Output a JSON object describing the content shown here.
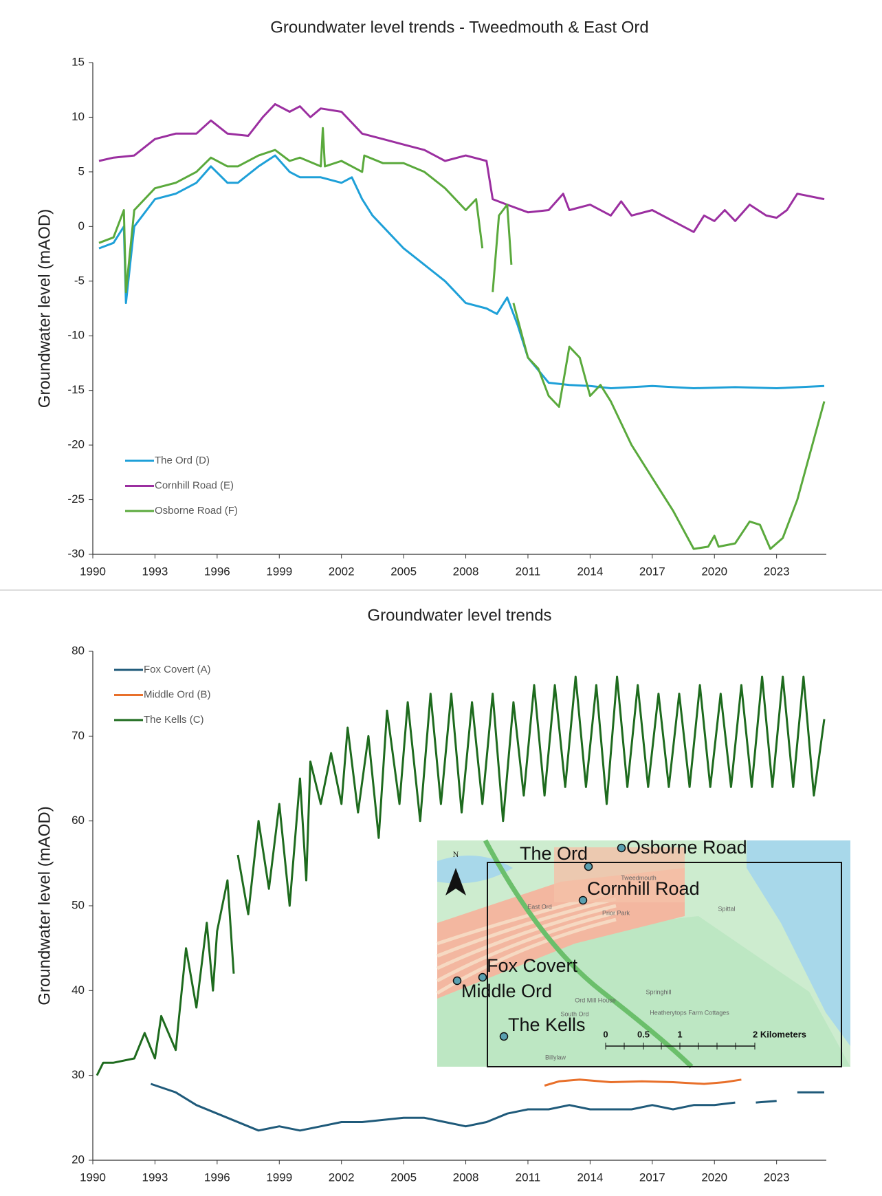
{
  "chart_data": [
    {
      "type": "line",
      "title": "Groundwater level trends - Tweedmouth & East Ord",
      "y_label": "Groundwater level (mAOD)",
      "xlim": [
        1990,
        2025.4
      ],
      "xticks": [
        1990,
        1993,
        1996,
        1999,
        2002,
        2005,
        2008,
        2011,
        2014,
        2017,
        2020,
        2023
      ],
      "ylim": [
        -30,
        15
      ],
      "yticks": [
        -30,
        -25,
        -20,
        -15,
        -10,
        -5,
        0,
        5,
        10,
        15
      ],
      "legend": "lower left",
      "series": [
        {
          "name": "The Ord (D)",
          "color": "#1ea0d8",
          "x": [
            1990.3,
            1991,
            1991.5,
            1991.6,
            1992,
            1993,
            1994,
            1995,
            1995.7,
            1996.5,
            1997,
            1998,
            1998.8,
            1999.5,
            2000,
            2001,
            2002,
            2002.5,
            2003,
            2003.5,
            2004,
            2005,
            2006,
            2007,
            2007.5,
            2008,
            2009,
            2009.5,
            2010,
            2010.5,
            2011,
            2012,
            2013,
            2014,
            2015,
            2017,
            2019,
            2021,
            2023,
            2025.3
          ],
          "values": [
            -2,
            -1.5,
            0,
            -7,
            0,
            2.5,
            3,
            4,
            5.5,
            4,
            4,
            5.5,
            6.5,
            5,
            4.5,
            4.5,
            4,
            4.5,
            2.5,
            1,
            0,
            -2,
            -3.5,
            -5,
            -6,
            -7,
            -7.5,
            -8,
            -6.5,
            -9,
            -12,
            -14.3,
            -14.5,
            -14.6,
            -14.8,
            -14.6,
            -14.8,
            -14.7,
            -14.8,
            -14.6
          ]
        },
        {
          "name": "Cornhill Road (E)",
          "color": "#9b2fa0",
          "x": [
            1990.3,
            1991,
            1992,
            1993,
            1994,
            1995,
            1995.7,
            1996.5,
            1997.5,
            1998.2,
            1998.8,
            1999.5,
            2000,
            2000.5,
            2001,
            2002,
            2002.5,
            2003,
            2004,
            2005,
            2006,
            2007,
            2008,
            2009,
            2009.3,
            2010,
            2011,
            2012,
            2012.7,
            2013,
            2014,
            2015,
            2015.5,
            2016,
            2017,
            2018,
            2019,
            2019.5,
            2020,
            2020.5,
            2021,
            2021.7,
            2022.5,
            2023,
            2023.5,
            2024,
            2025.3
          ],
          "values": [
            6,
            6.3,
            6.5,
            8,
            8.5,
            8.5,
            9.7,
            8.5,
            8.3,
            10,
            11.2,
            10.5,
            11,
            10,
            10.8,
            10.5,
            9.5,
            8.5,
            8,
            7.5,
            7,
            6,
            6.5,
            6,
            2.5,
            2,
            1.3,
            1.5,
            3,
            1.5,
            2,
            1,
            2.3,
            1,
            1.5,
            0.5,
            -0.5,
            1,
            0.5,
            1.5,
            0.5,
            2,
            1,
            0.8,
            1.5,
            3,
            2.5
          ]
        },
        {
          "name": "Osborne Road (F)",
          "color": "#5aa93c",
          "x": [
            1990.3,
            1991,
            1991.5,
            1991.6,
            1992,
            1993,
            1994,
            1995,
            1995.7,
            1996.5,
            1997,
            1998,
            1998.8,
            1999.5,
            2000,
            2001,
            2001.1,
            2001.2,
            2002,
            2003,
            2003.1,
            2004,
            2005,
            2006,
            2007,
            2008,
            2008.5,
            2008.8,
            2009,
            2009.3,
            2009.6,
            2010,
            2010.2,
            2010.25,
            2010.3,
            2011,
            2011.5,
            2012,
            2012.5,
            2013,
            2013.5,
            2014,
            2014.5,
            2015,
            2016,
            2017,
            2018,
            2019,
            2019.7,
            2020,
            2020.2,
            2021,
            2021.7,
            2022.2,
            2022.7,
            2023.3,
            2024,
            2025.3
          ],
          "values": [
            -1.5,
            -1,
            1.5,
            -6,
            1.5,
            3.5,
            4,
            5,
            6.3,
            5.5,
            5.5,
            6.5,
            7,
            6,
            6.3,
            5.5,
            9,
            5.5,
            6,
            5,
            6.5,
            5.8,
            5.8,
            5,
            3.5,
            1.5,
            2.5,
            -2,
            null,
            -6,
            1,
            2,
            -3.5,
            null,
            -7,
            -12,
            -13,
            -15.5,
            -16.5,
            -11,
            -12,
            -15.5,
            -14.5,
            -16,
            -20,
            -23,
            -26,
            -29.5,
            -29.3,
            -28.3,
            -29.3,
            -29,
            -27,
            -27.3,
            -29.5,
            -28.5,
            -25,
            -16
          ]
        }
      ]
    },
    {
      "type": "line",
      "title": "Groundwater level trends",
      "y_label": "Groundwater level (mAOD)",
      "xlim": [
        1990,
        2025.4
      ],
      "xticks": [
        1990,
        1993,
        1996,
        1999,
        2002,
        2005,
        2008,
        2011,
        2014,
        2017,
        2020,
        2023
      ],
      "ylim": [
        20,
        80
      ],
      "yticks": [
        20,
        30,
        40,
        50,
        60,
        70,
        80
      ],
      "legend": "upper left",
      "series": [
        {
          "name": "Fox Covert (A)",
          "color": "#1f5a7a",
          "x": [
            1992.8,
            1994,
            1995,
            1996.5,
            1998,
            1999,
            2000,
            2001,
            2002,
            2003,
            2005,
            2006,
            2007,
            2008,
            2009,
            2010,
            2011,
            2012,
            2013,
            2014,
            2015,
            2016,
            2017,
            2018,
            2019,
            2020,
            2021,
            2021.5,
            2022,
            2023,
            2023.5,
            2024,
            2025.3
          ],
          "values": [
            29,
            28,
            26.5,
            25,
            23.5,
            24,
            23.5,
            24,
            24.5,
            24.5,
            25,
            25,
            24.5,
            24,
            24.5,
            25.5,
            26,
            26,
            26.5,
            26,
            26,
            26,
            26.5,
            26,
            26.5,
            26.5,
            26.8,
            null,
            26.8,
            27,
            null,
            28,
            28
          ]
        },
        {
          "name": "Middle Ord (B)",
          "color": "#e8702b",
          "x": [
            2011.8,
            2012.5,
            2013.5,
            2015,
            2016.5,
            2018,
            2019.5,
            2020.5,
            2021.3
          ],
          "values": [
            28.8,
            29.3,
            29.5,
            29.2,
            29.3,
            29.2,
            29,
            29.2,
            29.5
          ]
        },
        {
          "name": "The Kells (C)",
          "color": "#1e6b1e",
          "x": [
            1990.2,
            1990.5,
            1991,
            1992,
            1992.5,
            1993,
            1993.3,
            1994,
            1994.5,
            1995,
            1995.5,
            1995.8,
            1996,
            1996.5,
            1996.8,
            1996.9,
            1997,
            1997.5,
            1998,
            1998.5,
            1999,
            1999.5,
            2000,
            2000.3,
            2000.5,
            2001,
            2001.5,
            2002,
            2002.3,
            2002.8,
            2003.3,
            2003.8,
            2004.2,
            2004.8,
            2005.2,
            2005.8,
            2006.3,
            2006.8,
            2007.3,
            2007.8,
            2008.3,
            2008.8,
            2009.3,
            2009.8,
            2010.3,
            2010.8,
            2011.3,
            2011.8,
            2012.3,
            2012.8,
            2013.3,
            2013.8,
            2014.3,
            2014.8,
            2015.3,
            2015.8,
            2016.3,
            2016.8,
            2017.3,
            2017.8,
            2018.3,
            2018.8,
            2019.3,
            2019.8,
            2020.3,
            2020.8,
            2021.3,
            2021.8,
            2022.3,
            2022.8,
            2023.3,
            2023.8,
            2024.3,
            2024.8,
            2025.3
          ],
          "values": [
            30,
            31.5,
            31.5,
            32,
            35,
            32,
            37,
            33,
            45,
            38,
            48,
            40,
            47,
            53,
            42,
            null,
            56,
            49,
            60,
            52,
            62,
            50,
            65,
            53,
            67,
            62,
            68,
            62,
            71,
            61,
            70,
            58,
            73,
            62,
            74,
            60,
            75,
            62,
            75,
            61,
            74,
            62,
            75,
            60,
            74,
            63,
            76,
            63,
            76,
            64,
            77,
            64,
            76,
            62,
            77,
            64,
            76,
            64,
            75,
            64,
            75,
            64,
            76,
            64,
            75,
            64,
            76,
            64,
            77,
            64,
            77,
            64,
            77,
            63,
            72
          ]
        }
      ],
      "inset": {
        "north": "N",
        "sites": [
          "The Ord",
          "Osborne Road",
          "Cornhill Road",
          "Fox Covert",
          "Middle Ord",
          "The Kells"
        ],
        "scale_labels": [
          "0",
          "0.5",
          "1",
          "2 Kilometers"
        ],
        "places": [
          "Tweedmouth",
          "East Ord",
          "Prior Park",
          "Spittal",
          "Springhill",
          "Ord Mill House",
          "South Ord",
          "Heatherytops Farm Cottages",
          "Billylaw"
        ]
      }
    }
  ]
}
